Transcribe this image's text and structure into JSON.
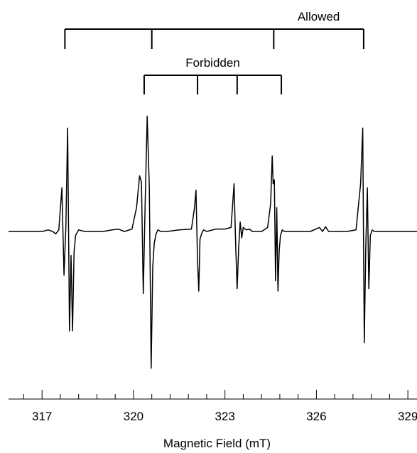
{
  "chart_data": {
    "type": "line",
    "title": "",
    "xlabel": "Magnetic Field (mT)",
    "ylabel": "",
    "xlim": [
      315.9,
      329.3
    ],
    "xticks": [
      317,
      320,
      323,
      326,
      329
    ],
    "minor_tick_step": 0.6,
    "grid": false,
    "legend": "none",
    "line_color": "#000000",
    "series": [
      {
        "x": [
          315.9,
          316.6,
          317.0,
          317.2,
          317.35,
          317.45,
          317.55,
          317.65,
          317.72,
          317.78,
          317.84,
          317.9,
          317.95,
          318.0,
          318.05,
          318.1,
          318.2,
          318.4,
          319.0,
          319.3,
          319.5,
          319.7,
          319.95,
          320.1,
          320.2,
          320.26,
          320.32,
          320.38,
          320.45,
          320.52,
          320.58,
          320.63,
          320.68,
          320.74,
          320.8,
          320.9,
          321.1,
          321.5,
          321.9,
          322.0,
          322.05,
          322.1,
          322.14,
          322.18,
          322.24,
          322.3,
          322.4,
          322.7,
          323.0,
          323.2,
          323.3,
          323.35,
          323.4,
          323.45,
          323.5,
          323.55,
          323.6,
          323.7,
          323.8,
          323.9,
          324.2,
          324.4,
          324.5,
          324.55,
          324.58,
          324.62,
          324.66,
          324.7,
          324.74,
          324.78,
          324.82,
          324.88,
          324.95,
          325.05,
          325.3,
          325.8,
          326.1,
          326.2,
          326.3,
          326.4,
          326.6,
          327.0,
          327.3,
          327.45,
          327.52,
          327.57,
          327.62,
          327.67,
          327.72,
          327.77,
          327.83,
          327.9,
          328.0,
          328.3,
          329.3
        ],
        "y": [
          0,
          0,
          0,
          0.02,
          0,
          -0.03,
          0.02,
          0.55,
          -0.55,
          0.05,
          1.3,
          -1.25,
          -0.3,
          -1.25,
          -0.25,
          -0.05,
          0.02,
          0,
          0,
          0.02,
          0.03,
          0,
          0.03,
          0.3,
          0.7,
          0.62,
          -0.78,
          0.3,
          1.45,
          0.55,
          -1.72,
          -0.45,
          -0.15,
          -0.03,
          0.02,
          0,
          0,
          0.02,
          0.03,
          0.3,
          0.52,
          -0.35,
          -0.75,
          -0.1,
          -0.02,
          0.02,
          0,
          0.03,
          0.03,
          0.05,
          0.6,
          -0.15,
          -0.72,
          -0.2,
          0.12,
          -0.08,
          0.05,
          0.02,
          0.03,
          0,
          0,
          0.05,
          0.35,
          0.95,
          0.6,
          0.65,
          -0.62,
          0.3,
          -0.75,
          -0.25,
          -0.05,
          0.02,
          0,
          0,
          0,
          0,
          0.05,
          0,
          0.06,
          0,
          0,
          0,
          0.02,
          0.6,
          1.3,
          -1.4,
          -0.2,
          0.55,
          -0.72,
          -0.05,
          0.02,
          0,
          0,
          0,
          0
        ]
      }
    ],
    "annotations": [
      {
        "label": "Allowed",
        "tick_positions": [
          317.75,
          320.6,
          324.6,
          327.55
        ]
      },
      {
        "label": "Forbidden",
        "tick_positions": [
          320.35,
          322.1,
          323.4,
          324.85
        ]
      }
    ]
  }
}
